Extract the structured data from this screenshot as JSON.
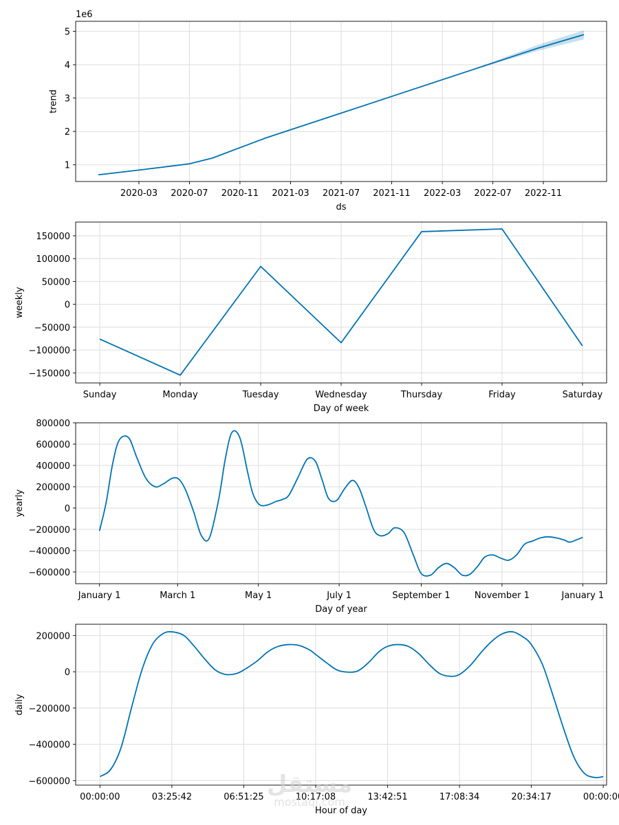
{
  "colors": {
    "line": "#0072b2",
    "band": "#0072b2",
    "grid": "#dddddd"
  },
  "watermark": {
    "logo": "مستقل",
    "site": "mostaql.com"
  },
  "chart_data": [
    {
      "type": "line",
      "name": "trend",
      "title": "",
      "xlabel": "ds",
      "ylabel": "trend",
      "offset_text": "1e6",
      "x_range": [
        2019.9,
        2023.1
      ],
      "xlim": [
        2019.75,
        2023.25
      ],
      "ylim": [
        0.5,
        5.3
      ],
      "xticks": [
        2020.167,
        2020.5,
        2020.833,
        2021.167,
        2021.5,
        2021.833,
        2022.167,
        2022.5,
        2022.833
      ],
      "xtick_labels": [
        "2020-03",
        "2020-07",
        "2020-11",
        "2021-03",
        "2021-07",
        "2021-11",
        "2022-03",
        "2022-07",
        "2022-11"
      ],
      "yticks": [
        1,
        2,
        3,
        4,
        5
      ],
      "ytick_labels": [
        "1",
        "2",
        "3",
        "4",
        "5"
      ],
      "x": [
        2019.9,
        2020.2,
        2020.5,
        2020.65,
        2021.0,
        2021.5,
        2022.0,
        2022.5,
        2022.8,
        2023.1
      ],
      "y": [
        0.7,
        0.86,
        1.03,
        1.2,
        1.8,
        2.55,
        3.3,
        4.05,
        4.5,
        4.9
      ],
      "band_x": [
        2022.0,
        2022.3,
        2022.5,
        2022.8,
        2023.1
      ],
      "band_lower": [
        3.3,
        3.74,
        4.02,
        4.42,
        4.76
      ],
      "band_upper": [
        3.3,
        3.76,
        4.09,
        4.6,
        5.03
      ]
    },
    {
      "type": "line",
      "name": "weekly",
      "xlabel": "Day of week",
      "ylabel": "weekly",
      "xlim": [
        -0.3,
        6.3
      ],
      "ylim": [
        -172000,
        180000
      ],
      "xticks": [
        0,
        1,
        2,
        3,
        4,
        5,
        6
      ],
      "xtick_labels": [
        "Sunday",
        "Monday",
        "Tuesday",
        "Wednesday",
        "Thursday",
        "Friday",
        "Saturday"
      ],
      "yticks": [
        -150000,
        -100000,
        -50000,
        0,
        50000,
        100000,
        150000
      ],
      "ytick_labels": [
        "−150000",
        "−100000",
        "−50000",
        "0",
        "50000",
        "100000",
        "150000"
      ],
      "x": [
        0,
        1,
        2,
        3,
        4,
        5,
        6
      ],
      "y": [
        -76000,
        -155000,
        83000,
        -84000,
        159000,
        165000,
        -91000
      ]
    },
    {
      "type": "line",
      "name": "yearly",
      "xlabel": "Day of year",
      "ylabel": "yearly",
      "xlim": [
        -18,
        383
      ],
      "ylim": [
        -710000,
        800000
      ],
      "xticks": [
        0,
        59,
        120,
        181,
        243,
        304,
        365
      ],
      "xtick_labels": [
        "January 1",
        "March 1",
        "May 1",
        "July 1",
        "September 1",
        "November 1",
        "January 1"
      ],
      "yticks": [
        -600000,
        -400000,
        -200000,
        0,
        200000,
        400000,
        600000,
        800000
      ],
      "ytick_labels": [
        "−600000",
        "−400000",
        "−200000",
        "0",
        "200000",
        "400000",
        "600000",
        "800000"
      ],
      "x": [
        0,
        5,
        10,
        15,
        22,
        28,
        35,
        42,
        48,
        55,
        60,
        65,
        71,
        77,
        83,
        90,
        95,
        100,
        106,
        112,
        116,
        121,
        127,
        133,
        138,
        143,
        150,
        157,
        163,
        168,
        173,
        179,
        185,
        191,
        196,
        201,
        207,
        212,
        218,
        223,
        230,
        237,
        243,
        250,
        256,
        262,
        268,
        274,
        280,
        286,
        291,
        297,
        303,
        309,
        315,
        321,
        327,
        333,
        339,
        345,
        351,
        355,
        360,
        365
      ],
      "y": [
        -215000,
        50000,
        420000,
        640000,
        660000,
        480000,
        280000,
        200000,
        225000,
        280000,
        270000,
        170000,
        -30000,
        -260000,
        -280000,
        80000,
        460000,
        710000,
        660000,
        330000,
        130000,
        30000,
        30000,
        60000,
        80000,
        120000,
        290000,
        460000,
        440000,
        270000,
        90000,
        70000,
        180000,
        260000,
        190000,
        20000,
        -200000,
        -260000,
        -240000,
        -185000,
        -230000,
        -440000,
        -615000,
        -630000,
        -560000,
        -520000,
        -560000,
        -630000,
        -620000,
        -540000,
        -460000,
        -440000,
        -470000,
        -490000,
        -440000,
        -340000,
        -310000,
        -280000,
        -270000,
        -280000,
        -300000,
        -320000,
        -300000,
        -275000
      ],
      "curve_style": "smooth"
    },
    {
      "type": "line",
      "name": "daily",
      "xlabel": "Hour of day",
      "ylabel": "daily",
      "xlim": [
        -1.16,
        24.16
      ],
      "ylim": [
        -625000,
        262000
      ],
      "xticks": [
        0,
        3.4283,
        6.8569,
        10.2856,
        13.7142,
        17.1428,
        20.5714,
        24
      ],
      "xtick_labels": [
        "00:00:00",
        "03:25:42",
        "06:51:25",
        "10:17:08",
        "13:42:51",
        "17:08:34",
        "20:34:17",
        "00:00:00"
      ],
      "yticks": [
        -600000,
        -400000,
        -200000,
        0,
        200000
      ],
      "ytick_labels": [
        "−600000",
        "−400000",
        "−200000",
        "0",
        "200000"
      ],
      "curve_style": "smooth",
      "x": [
        0,
        0.5,
        1.0,
        1.5,
        2.0,
        2.5,
        3.0,
        3.43,
        4.0,
        4.5,
        5.0,
        5.5,
        6.0,
        6.5,
        6.86,
        7.5,
        8.0,
        8.5,
        9.0,
        9.5,
        10.0,
        10.29,
        10.8,
        11.3,
        11.8,
        12.3,
        12.8,
        13.3,
        13.71,
        14.2,
        14.7,
        15.2,
        15.7,
        16.2,
        16.7,
        17.14,
        17.7,
        18.2,
        18.7,
        19.2,
        19.7,
        20.2,
        20.57,
        21.1,
        21.6,
        22.1,
        22.6,
        23.1,
        23.6,
        24
      ],
      "y": [
        -578000,
        -540000,
        -420000,
        -200000,
        10000,
        150000,
        210000,
        220000,
        200000,
        140000,
        70000,
        10000,
        -15000,
        -10000,
        10000,
        60000,
        110000,
        140000,
        150000,
        145000,
        120000,
        95000,
        50000,
        10000,
        -2000,
        5000,
        50000,
        110000,
        140000,
        150000,
        140000,
        100000,
        40000,
        -10000,
        -25000,
        -15000,
        40000,
        110000,
        170000,
        210000,
        220000,
        190000,
        150000,
        40000,
        -130000,
        -310000,
        -470000,
        -560000,
        -583000,
        -578000
      ]
    }
  ]
}
